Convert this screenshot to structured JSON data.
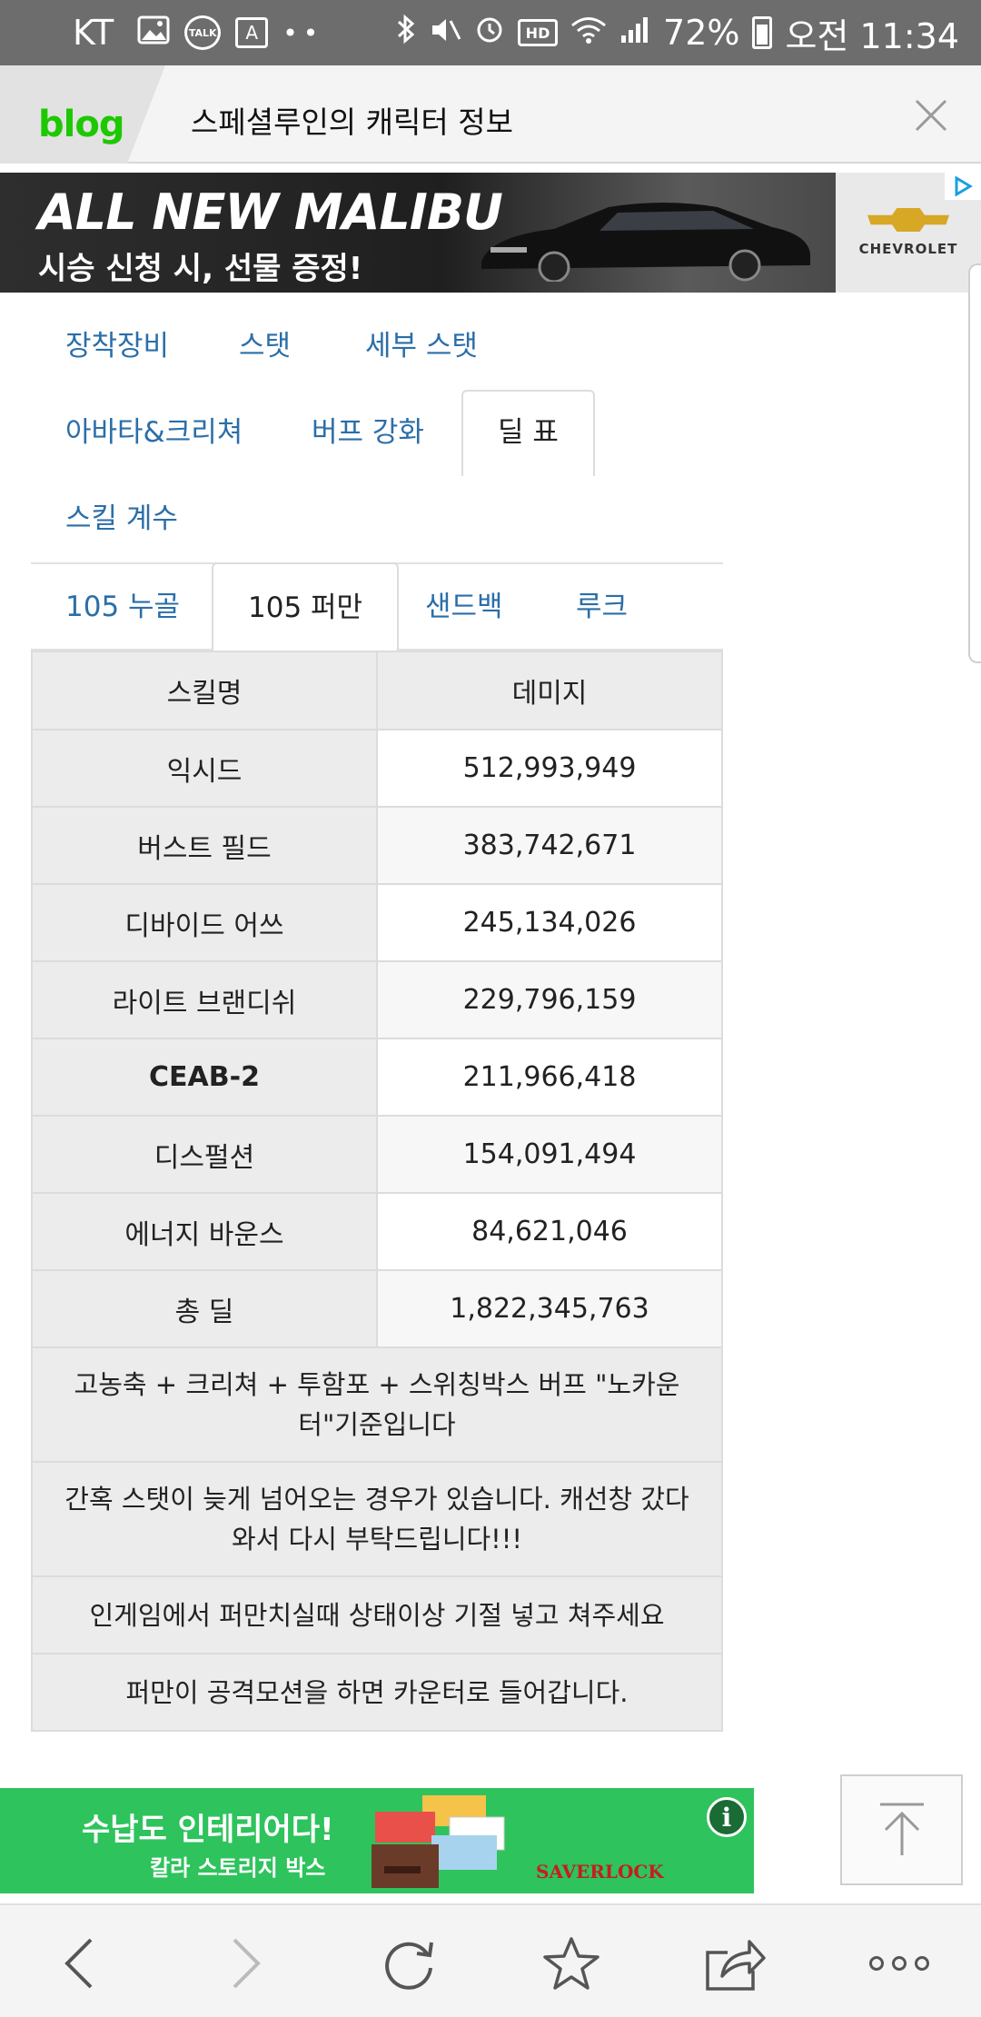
{
  "status_bar": {
    "carrier": "KT",
    "battery": "72%",
    "time": "오전 11:34",
    "icons": [
      "image-icon",
      "talk-icon",
      "a-icon",
      "dots-icon",
      "bluetooth-icon",
      "mute-icon",
      "alarm-icon",
      "hd-icon",
      "wifi-icon",
      "signal-icon",
      "battery-icon"
    ],
    "talk_label": "TALK",
    "a_label": "A",
    "hd_label": "HD"
  },
  "header": {
    "logo": "blog",
    "title": "스페셜루인의 캐릭터 정보"
  },
  "ad_top": {
    "headline": "ALL NEW MALIBU",
    "subline": "시승 신청 시, 선물 증정!",
    "brand": "CHEVROLET"
  },
  "tabs": [
    {
      "label": "장착장비"
    },
    {
      "label": "스탯"
    },
    {
      "label": "세부 스탯"
    },
    {
      "label": "아바타&크리쳐"
    },
    {
      "label": "버프 강화"
    },
    {
      "label": "딜 표",
      "active": true
    },
    {
      "label": "스킬 계수"
    }
  ],
  "subtabs": [
    {
      "label": "105 누골"
    },
    {
      "label": "105 퍼만",
      "active": true
    },
    {
      "label": "샌드백"
    },
    {
      "label": "루크"
    }
  ],
  "table": {
    "headers": [
      "스킬명",
      "데미지"
    ],
    "rows": [
      {
        "skill": "익시드",
        "damage": "512,993,949"
      },
      {
        "skill": "버스트 필드",
        "damage": "383,742,671"
      },
      {
        "skill": "디바이드 어쓰",
        "damage": "245,134,026"
      },
      {
        "skill": "라이트 브랜디쉬",
        "damage": "229,796,159"
      },
      {
        "skill": "CEAB-2",
        "damage": "211,966,418"
      },
      {
        "skill": "디스펄션",
        "damage": "154,091,494"
      },
      {
        "skill": "에너지 바운스",
        "damage": "84,621,046"
      },
      {
        "skill": "총 딜",
        "damage": "1,822,345,763"
      }
    ],
    "notes": [
      "고농축 + 크리쳐 + 투함포 + 스위칭박스 버프 \"노카운터\"기준입니다",
      "간혹 스탯이 늦게 넘어오는 경우가 있습니다. 캐선창 갔다와서 다시 부탁드립니다!!!",
      "인게임에서 퍼만치실때 상태이상 기절 넣고 쳐주세요",
      "퍼만이 공격모션을 하면 카운터로 들어갑니다."
    ]
  },
  "ad_bottom": {
    "line1": "수납도 인테리어다!",
    "line2": "칼라 스토리지 박스",
    "brand": "SAVERLOCK",
    "info": "i"
  },
  "bottom_nav": {
    "buttons": [
      "back-icon",
      "forward-icon",
      "reload-icon",
      "bookmark-icon",
      "share-icon",
      "more-icon"
    ]
  }
}
